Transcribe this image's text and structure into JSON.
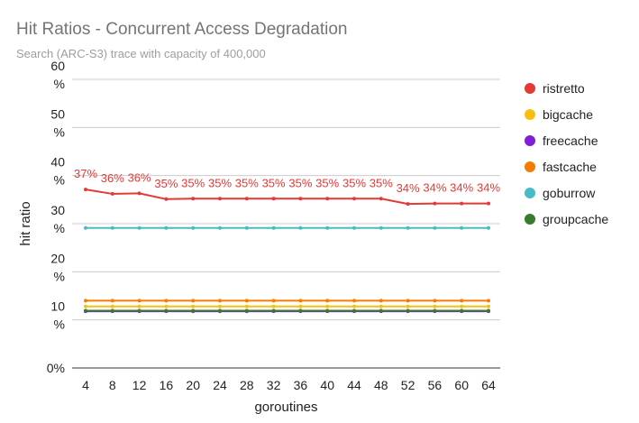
{
  "chart_data": {
    "type": "line",
    "title": "Hit Ratios - Concurrent Access Degradation",
    "subtitle": "Search (ARC-S3) trace with capacity of 400,000",
    "xlabel": "goroutines",
    "ylabel": "hit ratio",
    "categories": [
      "4",
      "8",
      "12",
      "16",
      "20",
      "24",
      "28",
      "32",
      "36",
      "40",
      "44",
      "48",
      "52",
      "56",
      "60",
      "64"
    ],
    "ylim": [
      0,
      60
    ],
    "yticks": [
      {
        "value": 0,
        "label": [
          "0%"
        ]
      },
      {
        "value": 10,
        "label": [
          "10",
          "%"
        ]
      },
      {
        "value": 20,
        "label": [
          "20",
          "%"
        ]
      },
      {
        "value": 30,
        "label": [
          "30",
          "%"
        ]
      },
      {
        "value": 40,
        "label": [
          "40",
          "%"
        ]
      },
      {
        "value": 50,
        "label": [
          "50",
          "%"
        ]
      },
      {
        "value": 60,
        "label": [
          "60",
          "%"
        ]
      }
    ],
    "grid": true,
    "legend_position": "right",
    "series": [
      {
        "name": "ristretto",
        "color": "#e53935",
        "values": [
          37.1,
          36.2,
          36.3,
          35.1,
          35.2,
          35.2,
          35.2,
          35.2,
          35.2,
          35.2,
          35.2,
          35.2,
          34.1,
          34.2,
          34.2,
          34.2
        ],
        "labels": [
          "37%",
          "36%",
          "36%",
          "35%",
          "35%",
          "35%",
          "35%",
          "35%",
          "35%",
          "35%",
          "35%",
          "35%",
          "34%",
          "34%",
          "34%",
          "34%"
        ]
      },
      {
        "name": "bigcache",
        "color": "#f9bf0f",
        "values": [
          12.8,
          12.8,
          12.8,
          12.8,
          12.8,
          12.8,
          12.8,
          12.8,
          12.8,
          12.8,
          12.8,
          12.8,
          12.8,
          12.8,
          12.8,
          12.8
        ]
      },
      {
        "name": "freecache",
        "color": "#7e1ed8",
        "values": [
          11.8,
          11.8,
          11.8,
          11.8,
          11.8,
          11.8,
          11.8,
          11.8,
          11.8,
          11.8,
          11.8,
          11.8,
          11.8,
          11.8,
          11.8,
          11.8
        ]
      },
      {
        "name": "fastcache",
        "color": "#f57c00",
        "values": [
          14.0,
          14.0,
          14.0,
          14.0,
          14.0,
          14.0,
          14.0,
          14.0,
          14.0,
          14.0,
          14.0,
          14.0,
          14.0,
          14.0,
          14.0,
          14.0
        ]
      },
      {
        "name": "goburrow",
        "color": "#46bdc6",
        "values": [
          29.1,
          29.1,
          29.1,
          29.1,
          29.1,
          29.1,
          29.1,
          29.1,
          29.1,
          29.1,
          29.1,
          29.1,
          29.1,
          29.1,
          29.1,
          29.1
        ]
      },
      {
        "name": "groupcache",
        "color": "#387c2b",
        "values": [
          11.9,
          11.9,
          11.9,
          11.9,
          11.9,
          11.9,
          11.9,
          11.9,
          11.9,
          11.9,
          11.9,
          11.9,
          11.9,
          11.9,
          11.9,
          11.9
        ]
      }
    ]
  }
}
